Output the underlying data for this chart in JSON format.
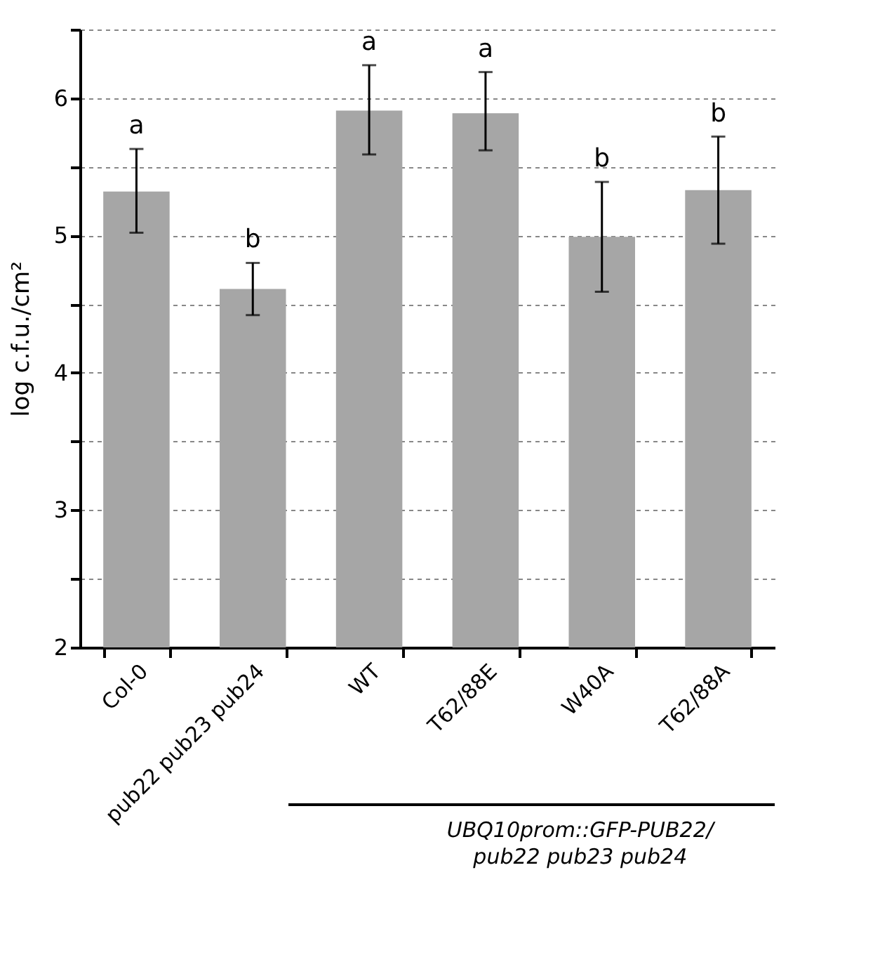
{
  "chart_data": {
    "type": "bar",
    "ylabel": "log c.f.u./cm²",
    "categories": [
      "Col-0",
      "pub22 pub23 pub24",
      "WT",
      "T62/88E",
      "W40A",
      "T62/88A"
    ],
    "values": [
      5.32,
      4.61,
      5.91,
      5.89,
      4.99,
      5.33
    ],
    "errors": [
      [
        5.02,
        5.63
      ],
      [
        4.42,
        4.8
      ],
      [
        5.59,
        6.24
      ],
      [
        5.62,
        6.19
      ],
      [
        4.59,
        5.39
      ],
      [
        4.94,
        5.72
      ]
    ],
    "color": "#a6a6a6",
    "ylim": [
      2,
      6.5
    ],
    "yticks": [
      2,
      {
        "value": 2.5,
        "label": null
      },
      3,
      {
        "value": 3.5,
        "label": null
      },
      4,
      {
        "value": 4.5,
        "label": null
      },
      5,
      {
        "value": 5.5,
        "label": null
      },
      6,
      {
        "value": 6.5,
        "label": null
      }
    ],
    "grid": "y",
    "annotations": [
      "a",
      "b",
      "a",
      "a",
      "b",
      "b",
      "UBQ10prom::GFP-PUB22/\npub22 pub23 pub24"
    ]
  }
}
